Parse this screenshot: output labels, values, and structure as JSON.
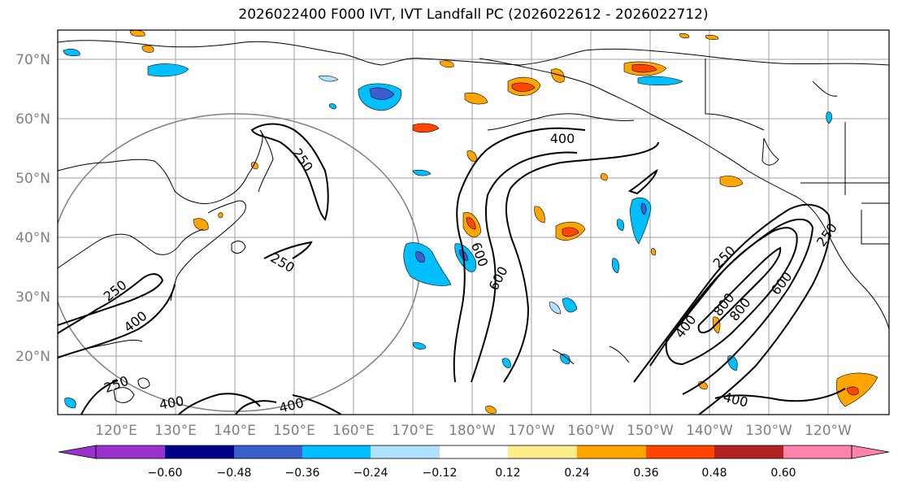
{
  "title": "2026022400 F000 IVT, IVT Landfall PC (2026022612 - 2026022712)",
  "map": {
    "lat_labels": [
      "70°N",
      "60°N",
      "50°N",
      "40°N",
      "30°N",
      "20°N"
    ],
    "lon_labels": [
      "120°E",
      "130°E",
      "140°E",
      "150°E",
      "160°E",
      "170°E",
      "180°W",
      "170°W",
      "160°W",
      "150°W",
      "140°W",
      "130°W",
      "120°W"
    ],
    "contour_labels": [
      "250",
      "250",
      "250",
      "250",
      "250",
      "250",
      "400",
      "400",
      "400",
      "400",
      "400",
      "400",
      "600",
      "600",
      "600",
      "800",
      "800"
    ]
  },
  "colorbar": {
    "colors": [
      "#9a32cd",
      "#00008b",
      "#3a5fcd",
      "#00bfff",
      "#b0e2ff",
      "#ffffff",
      "#ffec8b",
      "#ffa500",
      "#ff4500",
      "#b22222",
      "#ff82ab"
    ],
    "under_color": "#9a32cd",
    "over_color": "#ff82ab",
    "tick_labels": [
      "−0.60",
      "−0.48",
      "−0.36",
      "−0.24",
      "−0.12",
      "0.12",
      "0.24",
      "0.36",
      "0.48",
      "0.60"
    ]
  }
}
